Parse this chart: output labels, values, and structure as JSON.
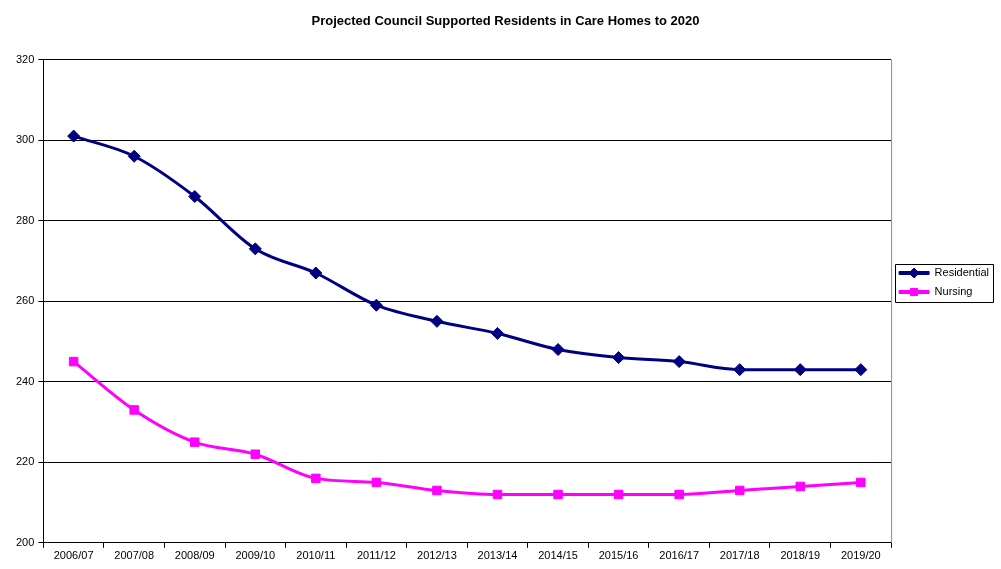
{
  "chart_data": {
    "type": "line",
    "title": "Projected Council Supported Residents in Care Homes to 2020",
    "categories": [
      "2006/07",
      "2007/08",
      "2008/09",
      "2009/10",
      "2010/11",
      "2011/12",
      "2012/13",
      "2013/14",
      "2014/15",
      "2015/16",
      "2016/17",
      "2017/18",
      "2018/19",
      "2019/20"
    ],
    "series": [
      {
        "name": "Residential",
        "color": "#000080",
        "marker": "diamond",
        "values": [
          301,
          296,
          286,
          273,
          267,
          259,
          255,
          252,
          248,
          246,
          245,
          243,
          243,
          243
        ]
      },
      {
        "name": "Nursing",
        "color": "#ff00ff",
        "marker": "square",
        "values": [
          245,
          233,
          225,
          222,
          216,
          215,
          213,
          212,
          212,
          212,
          212,
          213,
          214,
          215
        ]
      }
    ],
    "ylim": [
      200,
      320
    ],
    "yticks": [
      200,
      220,
      240,
      260,
      280,
      300,
      320
    ],
    "grid": "y",
    "legend": "right",
    "line_style": "solid"
  }
}
